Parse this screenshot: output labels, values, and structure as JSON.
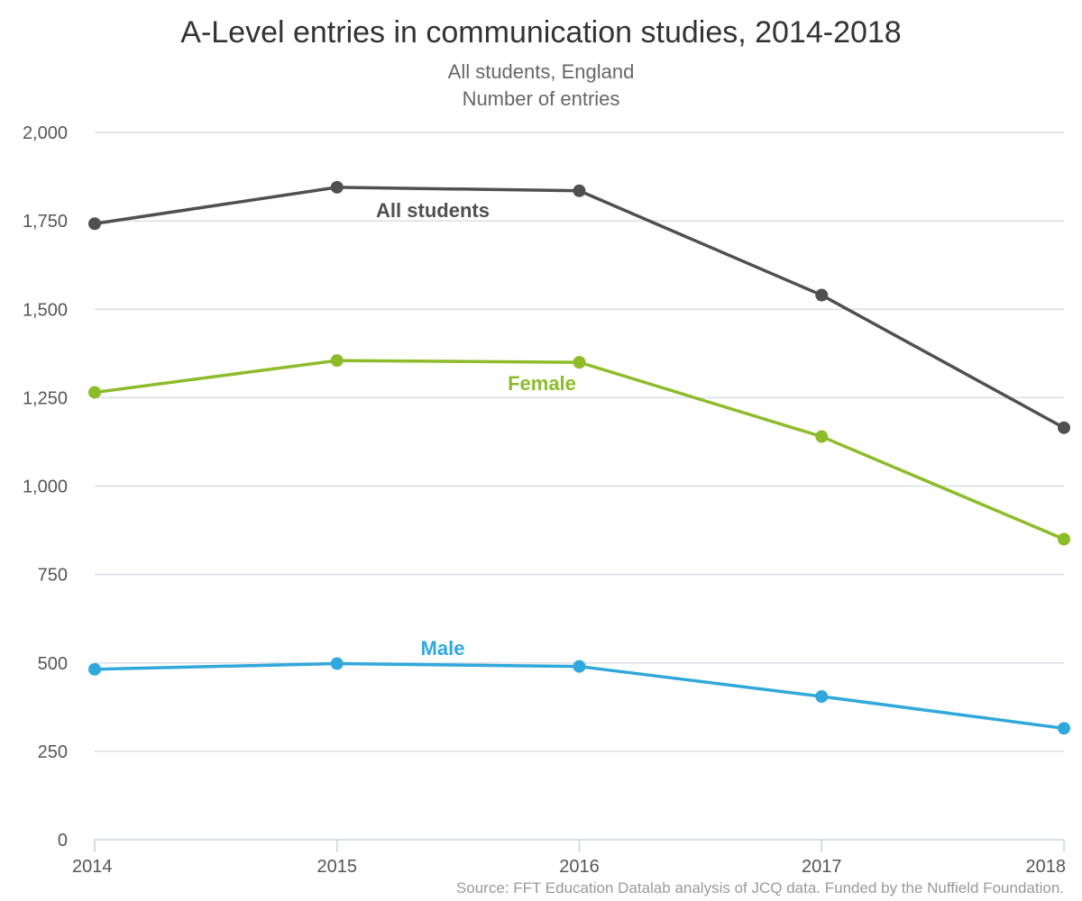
{
  "chart_data": {
    "type": "line",
    "title": "A-Level entries in communication studies, 2014-2018",
    "subtitle_lines": [
      "All students, England",
      "Number of entries"
    ],
    "xlabel": "",
    "ylabel": "",
    "x": [
      "2014",
      "2015",
      "2016",
      "2017",
      "2018"
    ],
    "ylim": [
      0,
      2000
    ],
    "y_ticks": [
      "0",
      "250",
      "500",
      "750",
      "1,000",
      "1,250",
      "1,500",
      "1,750",
      "2,000"
    ],
    "grid": true,
    "series": [
      {
        "name": "All students",
        "color": "#505050",
        "values": [
          1742,
          1845,
          1835,
          1540,
          1165
        ]
      },
      {
        "name": "Female",
        "color": "#8cbc2a",
        "values": [
          1265,
          1355,
          1350,
          1140,
          850
        ]
      },
      {
        "name": "Male",
        "color": "#31a8dc",
        "values": [
          482,
          498,
          490,
          405,
          315
        ]
      }
    ],
    "source": "Source: FFT Education Datalab analysis of JCQ data. Funded by the Nuffield Foundation."
  }
}
